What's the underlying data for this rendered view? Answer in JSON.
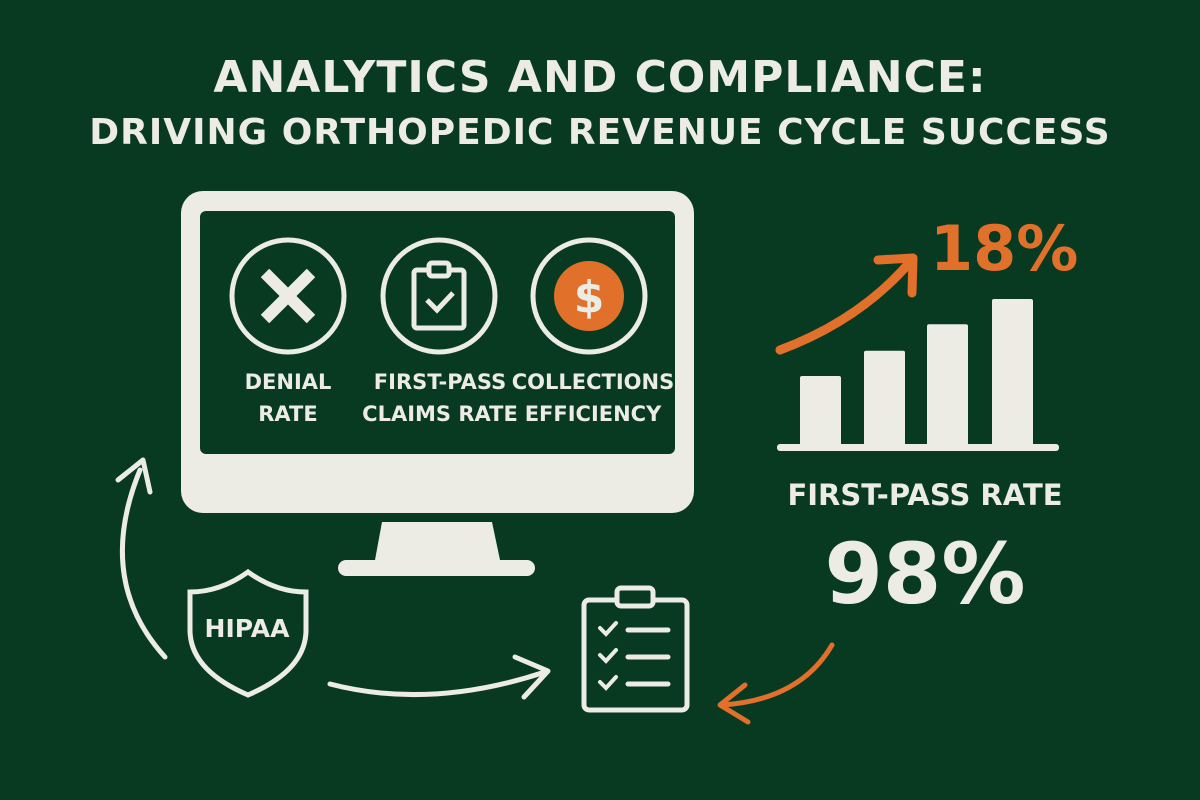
{
  "title": {
    "line1": "ANALYTICS AND COMPLIANCE:",
    "line2": "DRIVING ORTHOPEDIC REVENUE CYCLE SUCCESS"
  },
  "monitor": {
    "metrics": [
      {
        "icon": "x-icon",
        "line1": "DENIAL",
        "line2": "RATE"
      },
      {
        "icon": "clipboard-check-icon",
        "line1": "FIRST-PASS",
        "line2": "CLAIMS RATE"
      },
      {
        "icon": "dollar-icon",
        "line1": "COLLECTIONS",
        "line2": "EFFICIENCY"
      }
    ]
  },
  "growth": {
    "value": "18%",
    "bars_relative": [
      1,
      1.36,
      1.74,
      2.1
    ]
  },
  "first_pass": {
    "label": "FIRST-PASS RATE",
    "value": "98%"
  },
  "shield": {
    "label": "HIPAA"
  },
  "colors": {
    "background": "#083a22",
    "foreground": "#ecebe4",
    "accent": "#e0702a"
  }
}
